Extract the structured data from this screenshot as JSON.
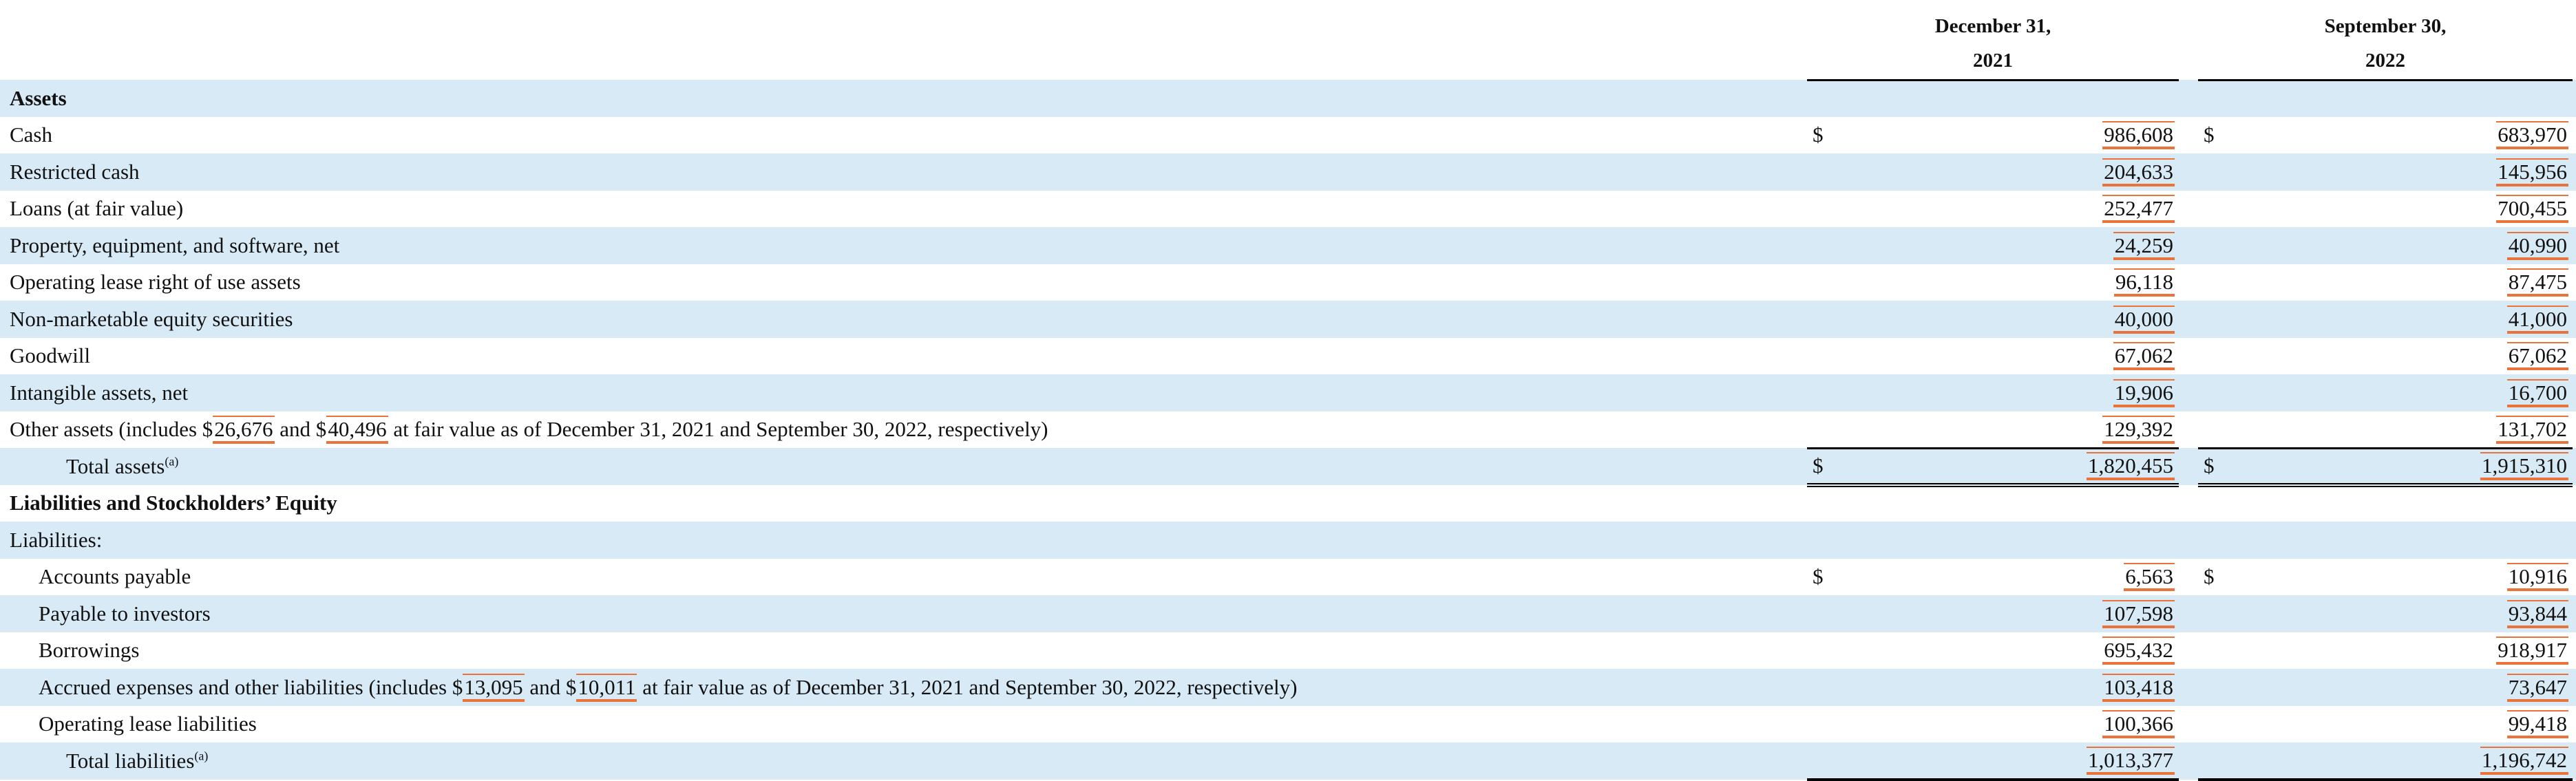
{
  "header": {
    "columns": [
      {
        "line1": "December 31,",
        "line2": "2021"
      },
      {
        "line1": "September 30,",
        "line2": "2022"
      }
    ]
  },
  "rows": [
    {
      "label": "Assets"
    },
    {
      "label": "Cash",
      "cur1": "$",
      "v1": "986,608",
      "cur2": "$",
      "v2": "683,970"
    },
    {
      "label": "Restricted cash",
      "v1": "204,633",
      "v2": "145,956"
    },
    {
      "label": "Loans (at fair value)",
      "v1": "252,477",
      "v2": "700,455"
    },
    {
      "label": "Property, equipment, and software, net",
      "v1": "24,259",
      "v2": "40,990"
    },
    {
      "label": "Operating lease right of use assets",
      "v1": "96,118",
      "v2": "87,475"
    },
    {
      "label": "Non-marketable equity securities",
      "v1": "40,000",
      "v2": "41,000"
    },
    {
      "label": "Goodwill",
      "v1": "67,062",
      "v2": "67,062"
    },
    {
      "label": "Intangible assets, net",
      "v1": "19,906",
      "v2": "16,700"
    },
    {
      "label": [
        "Other assets (includes $",
        "26,676",
        " and $",
        "40,496",
        " at fair value as of December 31, 2021 and September 30, 2022, respectively)"
      ],
      "v1": "129,392",
      "v2": "131,702"
    },
    {
      "label": "Total assets",
      "note": "(a)",
      "cur1": "$",
      "v1": "1,820,455",
      "cur2": "$",
      "v2": "1,915,310"
    },
    {
      "label": "Liabilities and Stockholders’ Equity"
    },
    {
      "label": "Liabilities:"
    },
    {
      "label": "Accounts payable",
      "cur1": "$",
      "v1": "6,563",
      "cur2": "$",
      "v2": "10,916"
    },
    {
      "label": "Payable to investors",
      "v1": "107,598",
      "v2": "93,844"
    },
    {
      "label": "Borrowings",
      "v1": "695,432",
      "v2": "918,917"
    },
    {
      "label": [
        "Accrued expenses and other liabilities (includes $",
        "13,095",
        " and $",
        "10,011",
        " at fair value as of December 31, 2021 and September 30, 2022, respectively)"
      ],
      "v1": "103,418",
      "v2": "73,647"
    },
    {
      "label": "Operating lease liabilities",
      "v1": "100,366",
      "v2": "99,418"
    },
    {
      "label": "Total liabilities",
      "note": "(a)",
      "v1": "1,013,377",
      "v2": "1,196,742"
    }
  ]
}
